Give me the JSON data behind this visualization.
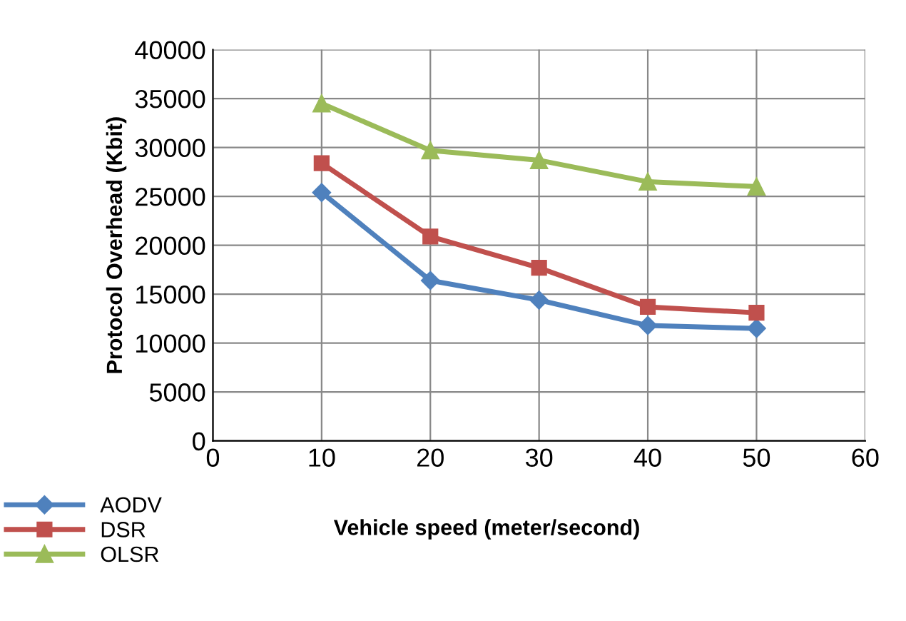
{
  "chart_data": {
    "type": "line",
    "xlabel": "Vehicle speed (meter/second)",
    "ylabel": "Protocol Overhead (Kbit)",
    "x": [
      10,
      20,
      30,
      40,
      50
    ],
    "series": [
      {
        "name": "AODV",
        "color": "#4f81bd",
        "marker": "diamond",
        "values": [
          25400,
          16400,
          14400,
          11800,
          11500
        ]
      },
      {
        "name": "DSR",
        "color": "#c0504d",
        "marker": "square",
        "values": [
          28400,
          20900,
          17700,
          13700,
          13100
        ]
      },
      {
        "name": "OLSR",
        "color": "#9bbb59",
        "marker": "triangle",
        "values": [
          34500,
          29700,
          28700,
          26500,
          26000
        ]
      }
    ],
    "xlim": [
      0,
      60
    ],
    "xticks": [
      0,
      10,
      20,
      30,
      40,
      50,
      60
    ],
    "ylim": [
      0,
      40000
    ],
    "yticks": [
      0,
      5000,
      10000,
      15000,
      20000,
      25000,
      30000,
      35000,
      40000
    ],
    "grid": true,
    "legend": "bottom left"
  }
}
